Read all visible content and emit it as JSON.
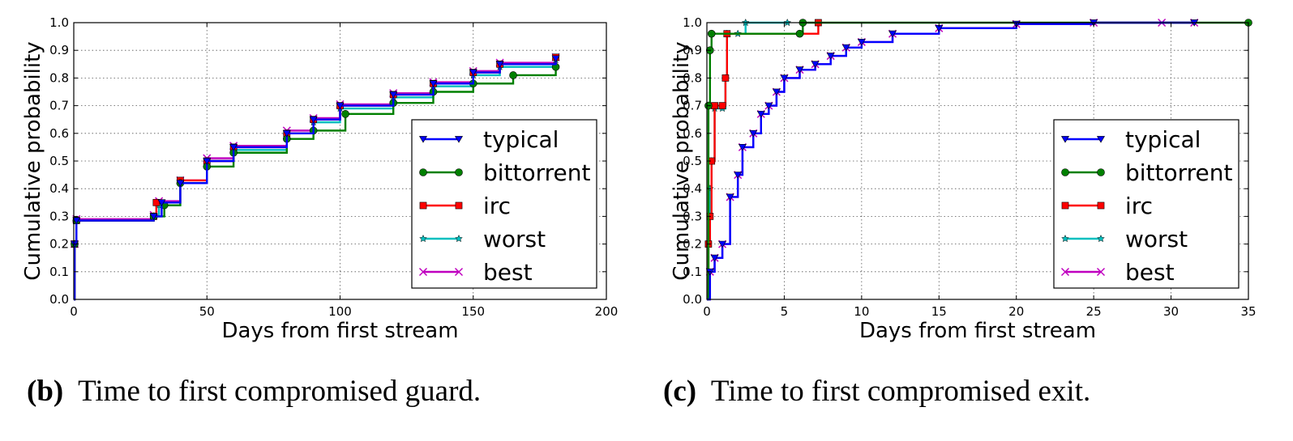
{
  "captions": [
    {
      "tag": "(b)",
      "text": "Time to first compromised guard."
    },
    {
      "tag": "(c)",
      "text": "Time to first compromised exit."
    }
  ],
  "colors": {
    "typical": "#0000ff",
    "bittorrent": "#008000",
    "irc": "#ff0000",
    "worst": "#00bfbf",
    "best": "#bf00bf"
  },
  "chart_data": [
    {
      "type": "line",
      "title": "",
      "xlabel": "Days from first stream",
      "ylabel": "Cumulative probability",
      "xlim": [
        0,
        200
      ],
      "ylim": [
        0.0,
        1.0
      ],
      "xticks": [
        0,
        50,
        100,
        150,
        200
      ],
      "yticks": [
        0.0,
        0.1,
        0.2,
        0.3,
        0.4,
        0.5,
        0.6,
        0.7,
        0.8,
        0.9,
        1.0
      ],
      "grid": true,
      "legend_position": "lower-right",
      "series": [
        {
          "name": "typical",
          "marker": "triangle-down",
          "x": [
            0,
            0.3,
            1,
            30,
            33,
            40,
            50,
            60,
            80,
            90,
            100,
            120,
            135,
            150,
            160,
            181
          ],
          "y": [
            0,
            0.2,
            0.285,
            0.3,
            0.35,
            0.42,
            0.5,
            0.55,
            0.6,
            0.65,
            0.7,
            0.74,
            0.78,
            0.82,
            0.85,
            0.87
          ]
        },
        {
          "name": "bittorrent",
          "marker": "circle",
          "x": [
            0,
            0.3,
            1,
            30,
            34,
            40,
            50,
            60,
            80,
            90,
            102,
            120,
            135,
            150,
            165,
            181
          ],
          "y": [
            0,
            0.2,
            0.285,
            0.3,
            0.34,
            0.42,
            0.48,
            0.53,
            0.58,
            0.61,
            0.67,
            0.71,
            0.75,
            0.78,
            0.81,
            0.84
          ]
        },
        {
          "name": "irc",
          "marker": "square",
          "x": [
            0,
            0.3,
            1,
            30,
            31,
            40,
            50,
            60,
            80,
            90,
            100,
            120,
            135,
            150,
            160,
            181
          ],
          "y": [
            0,
            0.2,
            0.285,
            0.3,
            0.35,
            0.43,
            0.5,
            0.55,
            0.6,
            0.65,
            0.7,
            0.74,
            0.78,
            0.82,
            0.85,
            0.875
          ]
        },
        {
          "name": "worst",
          "marker": "star",
          "x": [
            0,
            0.3,
            1,
            30,
            32,
            40,
            50,
            60,
            80,
            90,
            100,
            120,
            135,
            150,
            160,
            181
          ],
          "y": [
            0,
            0.2,
            0.285,
            0.3,
            0.34,
            0.42,
            0.5,
            0.54,
            0.6,
            0.64,
            0.69,
            0.73,
            0.77,
            0.81,
            0.84,
            0.865
          ]
        },
        {
          "name": "best",
          "marker": "x",
          "x": [
            0,
            0.3,
            1,
            30,
            32,
            40,
            50,
            60,
            80,
            90,
            100,
            120,
            135,
            150,
            160,
            181
          ],
          "y": [
            0,
            0.2,
            0.29,
            0.305,
            0.355,
            0.43,
            0.51,
            0.555,
            0.61,
            0.655,
            0.705,
            0.745,
            0.785,
            0.825,
            0.855,
            0.875
          ]
        }
      ]
    },
    {
      "type": "line",
      "title": "",
      "xlabel": "Days from first stream",
      "ylabel": "Cumulative probability",
      "xlim": [
        0,
        35
      ],
      "ylim": [
        0.0,
        1.0
      ],
      "xticks": [
        0,
        5,
        10,
        15,
        20,
        25,
        30,
        35
      ],
      "yticks": [
        0.0,
        0.1,
        0.2,
        0.3,
        0.4,
        0.5,
        0.6,
        0.7,
        0.8,
        0.9,
        1.0
      ],
      "grid": true,
      "legend_position": "lower-right",
      "series": [
        {
          "name": "typical",
          "marker": "triangle-down",
          "x": [
            0,
            0.2,
            0.5,
            1,
            1.5,
            2,
            2.3,
            3,
            3.5,
            4,
            4.5,
            5,
            6,
            7,
            8,
            9,
            10,
            12,
            15,
            20,
            25,
            31.5
          ],
          "y": [
            0,
            0.1,
            0.15,
            0.2,
            0.37,
            0.45,
            0.55,
            0.6,
            0.67,
            0.7,
            0.75,
            0.8,
            0.83,
            0.85,
            0.88,
            0.91,
            0.93,
            0.96,
            0.98,
            0.995,
            1.0,
            1.0
          ]
        },
        {
          "name": "bittorrent",
          "marker": "circle",
          "x": [
            0,
            0.1,
            0.2,
            0.3,
            6,
            6.2,
            35
          ],
          "y": [
            0,
            0.7,
            0.9,
            0.96,
            0.96,
            1.0,
            1.0
          ]
        },
        {
          "name": "irc",
          "marker": "square",
          "x": [
            0,
            0.1,
            0.2,
            0.3,
            0.5,
            1,
            1.2,
            1.3,
            7.2
          ],
          "y": [
            0,
            0.2,
            0.3,
            0.5,
            0.7,
            0.7,
            0.8,
            0.96,
            1.0
          ]
        },
        {
          "name": "worst",
          "marker": "star",
          "x": [
            0,
            0.1,
            0.2,
            0.3,
            0.5,
            1,
            1.2,
            1.3,
            2,
            2.5,
            5.2
          ],
          "y": [
            0,
            0.2,
            0.4,
            0.5,
            0.69,
            0.69,
            0.8,
            0.96,
            0.96,
            1.0,
            1.0
          ]
        },
        {
          "name": "best",
          "marker": "x",
          "x": [
            0,
            0.2,
            0.5,
            1,
            1.5,
            2,
            2.3,
            3,
            3.5,
            4,
            4.5,
            5,
            6,
            7,
            8,
            9,
            10,
            12,
            15,
            20,
            25,
            29.4,
            31.5
          ],
          "y": [
            0,
            0.1,
            0.15,
            0.2,
            0.37,
            0.45,
            0.55,
            0.6,
            0.67,
            0.7,
            0.75,
            0.8,
            0.83,
            0.85,
            0.88,
            0.91,
            0.93,
            0.96,
            0.98,
            0.995,
            1.0,
            1.0,
            1.0
          ]
        }
      ]
    }
  ]
}
